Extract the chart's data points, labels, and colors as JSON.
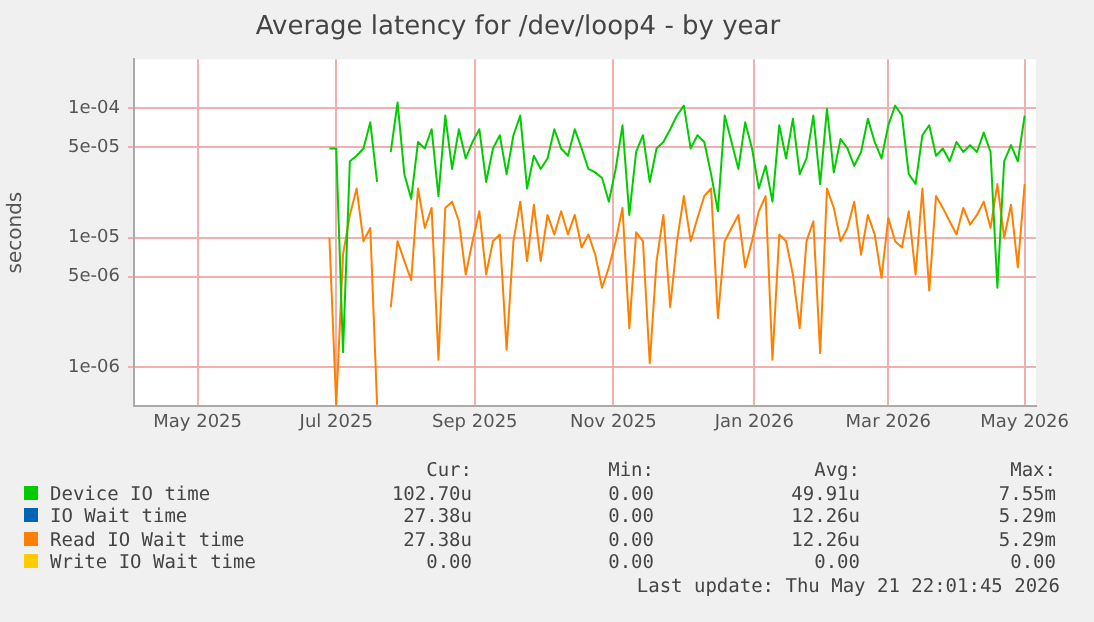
{
  "chart_data": {
    "type": "line",
    "title": "Average latency for /dev/loop4 - by year",
    "ylabel": "seconds",
    "log": "y",
    "grid": true,
    "legend": "bottom",
    "marker": "none",
    "line_style": "solid",
    "xlim": [
      "2025-04-18",
      "2026-05-20"
    ],
    "xticks": [
      {
        "value": "2025-05-16",
        "label": "May 2025"
      },
      {
        "value": "2025-07-16",
        "label": "Jul 2025"
      },
      {
        "value": "2025-09-15",
        "label": "Sep 2025"
      },
      {
        "value": "2025-11-15",
        "label": "Nov 2025"
      },
      {
        "value": "2026-01-16",
        "label": "Jan 2026"
      },
      {
        "value": "2026-03-16",
        "label": "Mar 2026"
      },
      {
        "value": "2026-05-15",
        "label": "May 2026"
      }
    ],
    "ylim": [
      5e-07,
      0.00024
    ],
    "yticks": [
      {
        "value": 1e-06,
        "label": "1e-06"
      },
      {
        "value": 5e-06,
        "label": "5e-06"
      },
      {
        "value": 1e-05,
        "label": "1e-05"
      },
      {
        "value": 5e-05,
        "label": "5e-05"
      },
      {
        "value": 0.0001,
        "label": "1e-04"
      }
    ],
    "x": [
      "2025-07-13",
      "2025-07-16",
      "2025-07-19",
      "2025-07-22",
      "2025-07-25",
      "2025-07-28",
      "2025-07-31",
      "2025-08-03",
      "2025-08-06",
      "2025-08-09",
      "2025-08-12",
      "2025-08-15",
      "2025-08-18",
      "2025-08-21",
      "2025-08-24",
      "2025-08-27",
      "2025-08-30",
      "2025-09-02",
      "2025-09-05",
      "2025-09-08",
      "2025-09-11",
      "2025-09-14",
      "2025-09-17",
      "2025-09-20",
      "2025-09-23",
      "2025-09-26",
      "2025-09-29",
      "2025-10-02",
      "2025-10-05",
      "2025-10-08",
      "2025-10-11",
      "2025-10-14",
      "2025-10-17",
      "2025-10-20",
      "2025-10-23",
      "2025-10-26",
      "2025-10-29",
      "2025-11-01",
      "2025-11-04",
      "2025-11-07",
      "2025-11-10",
      "2025-11-13",
      "2025-11-16",
      "2025-11-19",
      "2025-11-22",
      "2025-11-25",
      "2025-11-28",
      "2025-12-01",
      "2025-12-04",
      "2025-12-07",
      "2025-12-10",
      "2025-12-13",
      "2025-12-16",
      "2025-12-19",
      "2025-12-22",
      "2025-12-25",
      "2025-12-28",
      "2025-12-31",
      "2026-01-03",
      "2026-01-06",
      "2026-01-09",
      "2026-01-12",
      "2026-01-15",
      "2026-01-18",
      "2026-01-21",
      "2026-01-24",
      "2026-01-27",
      "2026-01-30",
      "2026-02-02",
      "2026-02-05",
      "2026-02-08",
      "2026-02-11",
      "2026-02-14",
      "2026-02-17",
      "2026-02-20",
      "2026-02-23",
      "2026-02-26",
      "2026-03-01",
      "2026-03-04",
      "2026-03-07",
      "2026-03-10",
      "2026-03-13",
      "2026-03-16",
      "2026-03-19",
      "2026-03-22",
      "2026-03-25",
      "2026-03-28",
      "2026-03-31",
      "2026-04-03",
      "2026-04-06",
      "2026-04-09",
      "2026-04-12",
      "2026-04-15",
      "2026-04-18",
      "2026-04-21",
      "2026-04-24",
      "2026-04-27",
      "2026-04-30",
      "2026-05-03",
      "2026-05-06",
      "2026-05-09",
      "2026-05-12",
      "2026-05-15"
    ],
    "series": [
      {
        "name": "Device IO time",
        "color": "#00cc00",
        "values": [
          4.9e-05,
          4.9e-05,
          1.3e-06,
          3.9e-05,
          4.3e-05,
          4.9e-05,
          7.8e-05,
          2.7e-05,
          null,
          4.6e-05,
          0.000111,
          3.1e-05,
          2e-05,
          5.5e-05,
          4.9e-05,
          6.9e-05,
          2.1e-05,
          8.8e-05,
          3.4e-05,
          6.9e-05,
          4.1e-05,
          5.5e-05,
          6.9e-05,
          2.7e-05,
          4.9e-05,
          6.2e-05,
          3.1e-05,
          6.2e-05,
          8.8e-05,
          2.4e-05,
          4.3e-05,
          3.4e-05,
          4.1e-05,
          6.9e-05,
          4.9e-05,
          4.3e-05,
          6.9e-05,
          4.9e-05,
          3.4e-05,
          3.2e-05,
          2.9e-05,
          1.9e-05,
          3.4e-05,
          7.4e-05,
          1.5e-05,
          4.6e-05,
          6.2e-05,
          2.7e-05,
          4.9e-05,
          5.5e-05,
          6.9e-05,
          8.8e-05,
          0.000105,
          4.9e-05,
          6.2e-05,
          5.5e-05,
          3.1e-05,
          1.6e-05,
          8.8e-05,
          5.5e-05,
          3.4e-05,
          7.8e-05,
          4.9e-05,
          2.4e-05,
          3.6e-05,
          1.9e-05,
          7.4e-05,
          4.1e-05,
          8.3e-05,
          3.1e-05,
          4.1e-05,
          8.8e-05,
          2.6e-05,
          9.9e-05,
          3.2e-05,
          5.8e-05,
          4.9e-05,
          3.6e-05,
          4.6e-05,
          8.3e-05,
          5.5e-05,
          4.1e-05,
          7.4e-05,
          0.000105,
          8.8e-05,
          3.1e-05,
          2.6e-05,
          6.2e-05,
          7.4e-05,
          4.3e-05,
          4.9e-05,
          3.9e-05,
          5.5e-05,
          4.6e-05,
          5.2e-05,
          4.6e-05,
          6.5e-05,
          4.6e-05,
          4.1e-06,
          3.9e-05,
          5.2e-05,
          3.9e-05,
          8.8e-05
        ]
      },
      {
        "name": "IO Wait time",
        "color": "#0066b3",
        "values": [
          null,
          null,
          null,
          null,
          null,
          null,
          null,
          null,
          null,
          null,
          null,
          null,
          null,
          null,
          null,
          null,
          null,
          null,
          null,
          null,
          null,
          null,
          null,
          null,
          null,
          null,
          null,
          null,
          null,
          null,
          null,
          null,
          null,
          null,
          null,
          null,
          null,
          null,
          null,
          null,
          null,
          null,
          null,
          null,
          null,
          null,
          null,
          null,
          null,
          null,
          null,
          null,
          null,
          null,
          null,
          null,
          null,
          null,
          null,
          null,
          null,
          null,
          null,
          null,
          null,
          null,
          null,
          null,
          null,
          null,
          null,
          null,
          null,
          null,
          null,
          null,
          null,
          null,
          null,
          null,
          null,
          null,
          null,
          null,
          null,
          null,
          null,
          null,
          null,
          null,
          null,
          null,
          null,
          null,
          null,
          null,
          null,
          null,
          null,
          null,
          null,
          null,
          null
        ]
      },
      {
        "name": "Read IO Wait time",
        "color": "#ff8000",
        "values": [
          1e-05,
          5.1e-07,
          7.4e-06,
          1.5e-05,
          2.4e-05,
          9.4e-06,
          1.19e-05,
          5.1e-07,
          null,
          2.9e-06,
          9.4e-06,
          6.6e-06,
          4.7e-06,
          2.4e-05,
          1.19e-05,
          1.7e-05,
          1.14e-06,
          1.7e-05,
          1.9e-05,
          1.34e-05,
          5.2e-06,
          9.4e-06,
          1.6e-05,
          5.2e-06,
          9.4e-06,
          1.06e-05,
          1.36e-06,
          9.4e-06,
          1.9e-05,
          6.6e-06,
          1.8e-05,
          6.6e-06,
          1.5e-05,
          1.06e-05,
          1.6e-05,
          1.06e-05,
          1.5e-05,
          8.4e-06,
          1.06e-05,
          7.4e-06,
          4.1e-06,
          5.9e-06,
          9.4e-06,
          1.7e-05,
          2e-06,
          1.1e-05,
          9.4e-06,
          1.07e-06,
          6.6e-06,
          1.5e-05,
          2.9e-06,
          9.4e-06,
          2.1e-05,
          9.4e-06,
          1.42e-05,
          2.1e-05,
          2.4e-05,
          2.4e-06,
          9.4e-06,
          1.19e-05,
          1.5e-05,
          5.9e-06,
          9.4e-06,
          1.6e-05,
          2.1e-05,
          1.14e-06,
          1.06e-05,
          9.4e-06,
          5.2e-06,
          2e-06,
          9.4e-06,
          1.34e-05,
          1.28e-06,
          2.4e-05,
          1.7e-05,
          9.4e-06,
          1.19e-05,
          1.9e-05,
          7.4e-06,
          1.5e-05,
          1.06e-05,
          4.9e-06,
          1.42e-05,
          9.4e-06,
          8.4e-06,
          1.6e-05,
          5.2e-06,
          2.4e-05,
          3.9e-06,
          2.1e-05,
          1.7e-05,
          1.34e-05,
          1.06e-05,
          1.7e-05,
          1.26e-05,
          1.5e-05,
          1.9e-05,
          1.19e-05,
          2.6e-05,
          1e-05,
          1.8e-05,
          5.9e-06,
          2.6e-05
        ]
      },
      {
        "name": "Write IO Wait time",
        "color": "#ffcc00",
        "values": [
          null,
          null,
          null,
          null,
          null,
          null,
          null,
          null,
          null,
          null,
          null,
          null,
          null,
          null,
          null,
          null,
          null,
          null,
          null,
          null,
          null,
          null,
          null,
          null,
          null,
          null,
          null,
          null,
          null,
          null,
          null,
          null,
          null,
          null,
          null,
          null,
          null,
          null,
          null,
          null,
          null,
          null,
          null,
          null,
          null,
          null,
          null,
          null,
          null,
          null,
          null,
          null,
          null,
          null,
          null,
          null,
          null,
          null,
          null,
          null,
          null,
          null,
          null,
          null,
          null,
          null,
          null,
          null,
          null,
          null,
          null,
          null,
          null,
          null,
          null,
          null,
          null,
          null,
          null,
          null,
          null,
          null,
          null,
          null,
          null,
          null,
          null,
          null,
          null,
          null,
          null,
          null,
          null,
          null,
          null,
          null,
          null,
          null,
          null,
          null,
          null,
          null,
          null
        ]
      }
    ],
    "annotations": [
      "Cur:",
      "Min:",
      "Avg:",
      "Max:",
      "102.70u",
      "0.00",
      "49.91u",
      "7.55m",
      "27.38u",
      "0.00",
      "12.26u",
      "5.29m",
      "27.38u",
      "0.00",
      "12.26u",
      "5.29m",
      "0.00",
      "0.00",
      "0.00",
      "0.00",
      "Last update: Thu May 21 22:01:45 2026"
    ]
  }
}
